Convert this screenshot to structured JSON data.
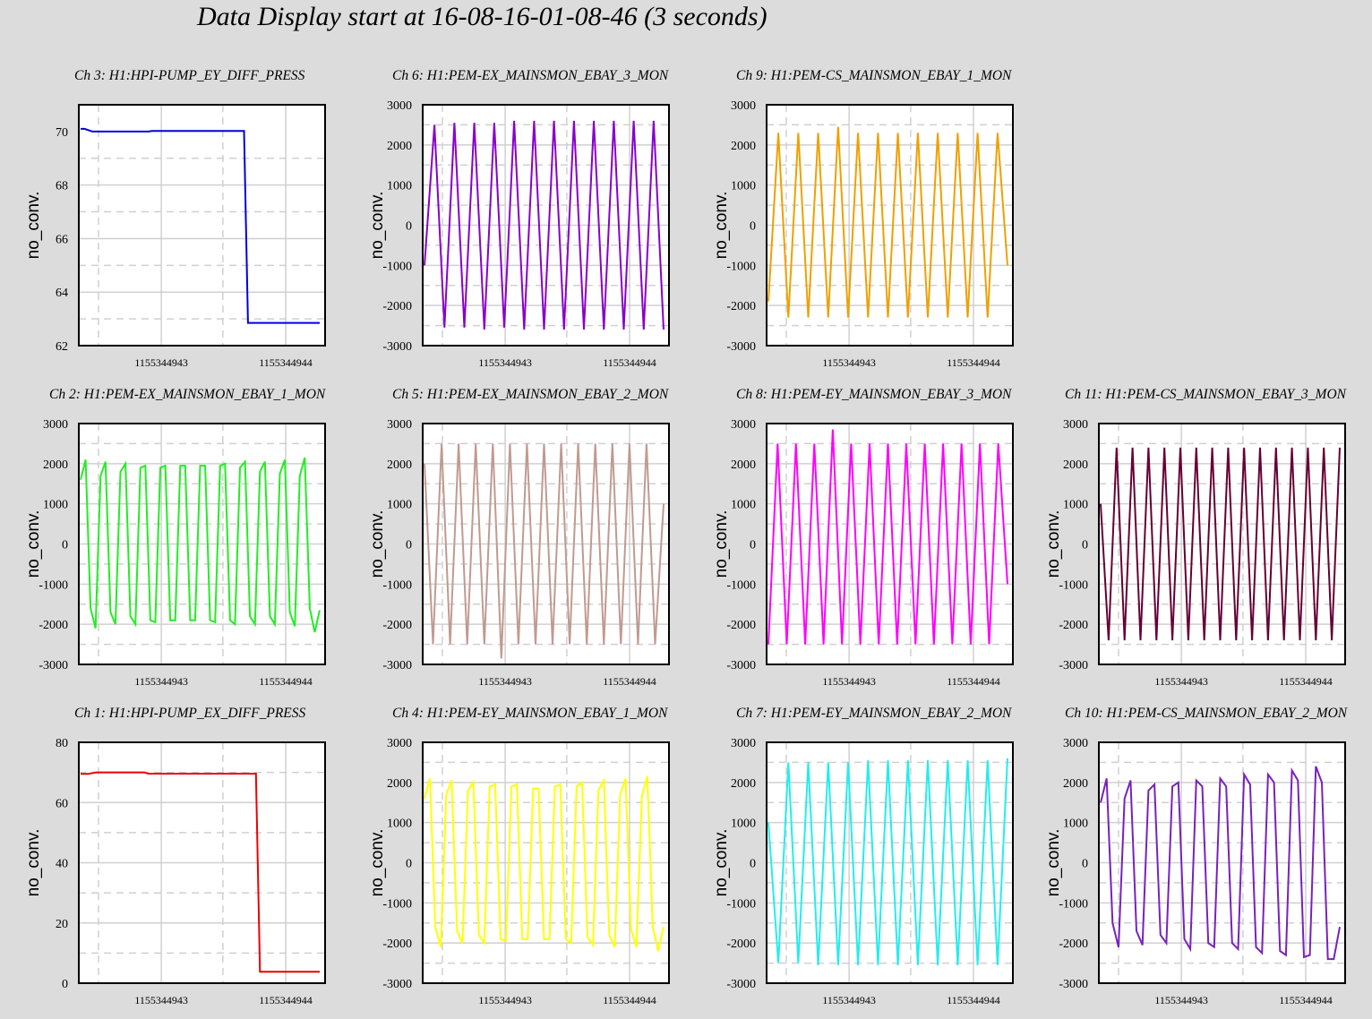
{
  "title": "Data Display start at 16-08-16-01-08-46 (3 seconds)",
  "chart_data": [
    {
      "type": "line",
      "channel": "Ch 3: H1:HPI-PUMP_EY_DIFF_PRESS",
      "color": "#0000dd",
      "ylabel": "no_conv.",
      "ylim": [
        62,
        71
      ],
      "yticks": [
        "70",
        "68",
        "66",
        "64",
        "62"
      ],
      "xticks": [
        "1155344943",
        "1155344944"
      ],
      "grid": true,
      "series": [
        {
          "values": [
            70.1,
            70.1,
            70.05,
            70.0,
            70.0,
            70.0,
            70.0,
            70.0,
            70.0,
            70.0,
            70.0,
            70.0,
            70.0,
            70.0,
            70.0,
            70.0,
            70.0,
            70.0,
            70.02,
            70.02,
            70.02,
            70.02,
            70.02,
            70.02,
            70.02,
            70.02,
            70.02,
            70.02,
            70.02,
            70.02,
            70.02,
            70.02,
            70.02,
            70.02,
            70.02,
            70.02,
            70.02,
            70.02,
            70.02,
            70.02,
            70.02,
            70.02,
            62.85,
            62.85,
            62.85,
            62.85,
            62.85,
            62.85,
            62.85,
            62.85,
            62.85,
            62.85,
            62.85,
            62.85,
            62.85,
            62.85,
            62.85,
            62.85,
            62.85,
            62.85,
            62.85
          ]
        }
      ]
    },
    {
      "type": "line",
      "channel": "Ch 6: H1:PEM-EX_MAINSMON_EBAY_3_MON",
      "color": "#8800cc",
      "ylabel": "no_conv.",
      "ylim": [
        -3000,
        3000
      ],
      "yticks": [
        "3000",
        "2000",
        "1000",
        "0",
        "-1000",
        "-2000",
        "-3000"
      ],
      "xticks": [
        "1155344943",
        "1155344944"
      ],
      "grid": true,
      "series": [
        {
          "values": [
            -1000,
            2500,
            -2550,
            2550,
            -2550,
            2550,
            -2600,
            2550,
            -2550,
            2600,
            -2600,
            2600,
            -2600,
            2600,
            -2600,
            2600,
            -2600,
            2600,
            -2600,
            2600,
            -2600,
            2600,
            -2600,
            2600,
            -2600
          ]
        }
      ]
    },
    {
      "type": "line",
      "channel": "Ch 9: H1:PEM-CS_MAINSMON_EBAY_1_MON",
      "color": "#f0a000",
      "ylabel": "no_conv.",
      "ylim": [
        -3000,
        3000
      ],
      "yticks": [
        "3000",
        "2000",
        "1000",
        "0",
        "-1000",
        "-2000",
        "-3000"
      ],
      "xticks": [
        "1155344943",
        "1155344944"
      ],
      "grid": true,
      "series": [
        {
          "values": [
            -1900,
            2300,
            -2300,
            2300,
            -2300,
            2300,
            -2300,
            2450,
            -2300,
            2300,
            -2300,
            2300,
            -2300,
            2300,
            -2300,
            2300,
            -2300,
            2300,
            -2300,
            2300,
            -2300,
            2300,
            -2300,
            2300,
            -1000
          ]
        }
      ]
    },
    {
      "type": "line",
      "channel": "Ch 2: H1:PEM-EX_MAINSMON_EBAY_1_MON",
      "color": "#22ee22",
      "ylabel": "no_conv.",
      "ylim": [
        -3000,
        3000
      ],
      "yticks": [
        "3000",
        "2000",
        "1000",
        "0",
        "-1000",
        "-2000",
        "-3000"
      ],
      "xticks": [
        "1155344943",
        "1155344944"
      ],
      "grid": true,
      "series": [
        {
          "values": [
            1600,
            2100,
            -1600,
            -2100,
            1700,
            2050,
            -1700,
            -2000,
            1800,
            2000,
            -1800,
            -2000,
            1900,
            1950,
            -1900,
            -1950,
            1900,
            1950,
            -1900,
            -1900,
            1950,
            1950,
            -1900,
            -1900,
            1950,
            1950,
            -1900,
            -1950,
            1950,
            2000,
            -1900,
            -2000,
            1900,
            2050,
            -1800,
            -2000,
            1800,
            2050,
            -1800,
            -2000,
            1750,
            2100,
            -1700,
            -2050,
            1700,
            2150,
            -1600,
            -2200,
            -1650
          ]
        }
      ]
    },
    {
      "type": "line",
      "channel": "Ch 5: H1:PEM-EX_MAINSMON_EBAY_2_MON",
      "color": "#c09a90",
      "ylabel": "no_conv.",
      "ylim": [
        -3000,
        3000
      ],
      "yticks": [
        "3000",
        "2000",
        "1000",
        "0",
        "-1000",
        "-2000",
        "-3000"
      ],
      "xticks": [
        "1155344943",
        "1155344944"
      ],
      "grid": true,
      "series": [
        {
          "values": [
            2000,
            -2500,
            2500,
            -2500,
            2500,
            -2500,
            2500,
            -2500,
            2500,
            -2850,
            2500,
            -2500,
            2500,
            -2500,
            2500,
            -2500,
            2500,
            -2500,
            2500,
            -2500,
            2500,
            -2500,
            2500,
            -2500,
            2500,
            -2500,
            2500,
            -2500,
            1000
          ]
        }
      ]
    },
    {
      "type": "line",
      "channel": "Ch 8: H1:PEM-EY_MAINSMON_EBAY_3_MON",
      "color": "#ff00ff",
      "ylabel": "no_conv.",
      "ylim": [
        -3000,
        3000
      ],
      "yticks": [
        "3000",
        "2000",
        "1000",
        "0",
        "-1000",
        "-2000",
        "-3000"
      ],
      "xticks": [
        "1155344943",
        "1155344944"
      ],
      "grid": true,
      "series": [
        {
          "values": [
            -2500,
            2500,
            -2500,
            2500,
            -2500,
            2500,
            -2500,
            2850,
            -2500,
            2500,
            -2500,
            2500,
            -2500,
            2500,
            -2500,
            2500,
            -2500,
            2500,
            -2500,
            2500,
            -2500,
            2500,
            -2500,
            2500,
            -2500,
            2500,
            -1000
          ]
        }
      ]
    },
    {
      "type": "line",
      "channel": "Ch 11: H1:PEM-CS_MAINSMON_EBAY_3_MON",
      "color": "#660033",
      "ylabel": "no_conv.",
      "ylim": [
        -3000,
        3000
      ],
      "yticks": [
        "3000",
        "2000",
        "1000",
        "0",
        "-1000",
        "-2000",
        "-3000"
      ],
      "xticks": [
        "1155344943",
        "1155344944"
      ],
      "grid": true,
      "series": [
        {
          "values": [
            1000,
            -2400,
            2400,
            -2400,
            2400,
            -2400,
            2400,
            -2400,
            2400,
            -2400,
            2400,
            -2400,
            2400,
            -2400,
            2400,
            -2400,
            2400,
            -2400,
            2400,
            -2400,
            2400,
            -2400,
            2400,
            -2400,
            2400,
            -2400,
            2400,
            -2400,
            2400,
            -2400,
            2400
          ]
        }
      ]
    },
    {
      "type": "line",
      "channel": "Ch 1: H1:HPI-PUMP_EX_DIFF_PRESS",
      "color": "#ee0000",
      "ylabel": "no_conv.",
      "ylim": [
        0,
        80
      ],
      "yticks": [
        "80",
        "60",
        "40",
        "20",
        "0"
      ],
      "xticks": [
        "1155344943",
        "1155344944"
      ],
      "grid": true,
      "series": [
        {
          "values": [
            69.5,
            69.5,
            69.5,
            69.8,
            70.0,
            70.0,
            70.0,
            70.0,
            70.0,
            70.0,
            70.0,
            70.0,
            70.0,
            70.0,
            70.0,
            70.0,
            70.0,
            69.6,
            69.6,
            69.6,
            69.6,
            69.6,
            69.6,
            69.6,
            69.6,
            69.6,
            69.6,
            69.6,
            69.6,
            69.6,
            69.6,
            69.6,
            69.6,
            69.6,
            69.6,
            69.6,
            69.6,
            69.6,
            69.6,
            69.6,
            69.6,
            69.6,
            69.6,
            69.6,
            69.6,
            3.8,
            3.8,
            3.8,
            3.8,
            3.8,
            3.8,
            3.8,
            3.8,
            3.8,
            3.8,
            3.8,
            3.8,
            3.8,
            3.8,
            3.8,
            3.8
          ]
        }
      ]
    },
    {
      "type": "line",
      "channel": "Ch 4: H1:PEM-EY_MAINSMON_EBAY_1_MON",
      "color": "#ffff00",
      "ylabel": "no_conv.",
      "ylim": [
        -3000,
        3000
      ],
      "yticks": [
        "3000",
        "2000",
        "1000",
        "0",
        "-1000",
        "-2000",
        "-3000"
      ],
      "xticks": [
        "1155344943",
        "1155344944"
      ],
      "grid": true,
      "series": [
        {
          "values": [
            1600,
            2100,
            -1600,
            -2100,
            1700,
            2050,
            -1700,
            -2000,
            1800,
            2000,
            -1800,
            -2000,
            1900,
            1950,
            -1900,
            -1950,
            1900,
            1950,
            -1900,
            -1900,
            1850,
            1850,
            -1900,
            -1900,
            1900,
            1950,
            -1900,
            -2000,
            1900,
            2000,
            -1850,
            -2050,
            1800,
            2050,
            -1800,
            -2100,
            1700,
            2100,
            -1650,
            -2100,
            1650,
            2150,
            -1600,
            -2200,
            -1600
          ]
        }
      ]
    },
    {
      "type": "line",
      "channel": "Ch 7: H1:PEM-EY_MAINSMON_EBAY_2_MON",
      "color": "#22eeee",
      "ylabel": "no_conv.",
      "ylim": [
        -3000,
        3000
      ],
      "yticks": [
        "3000",
        "2000",
        "1000",
        "0",
        "-1000",
        "-2000",
        "-3000"
      ],
      "xticks": [
        "1155344943",
        "1155344944"
      ],
      "grid": true,
      "series": [
        {
          "values": [
            1000,
            -2500,
            2500,
            -2500,
            2500,
            -2550,
            2500,
            -2550,
            2500,
            -2550,
            2550,
            -2550,
            2550,
            -2550,
            2550,
            -2550,
            2550,
            -2550,
            2550,
            -2550,
            2550,
            -2550,
            2550,
            -2550,
            2600
          ]
        }
      ]
    },
    {
      "type": "line",
      "channel": "Ch 10: H1:PEM-CS_MAINSMON_EBAY_2_MON",
      "color": "#7722bb",
      "ylabel": "no_conv.",
      "ylim": [
        -3000,
        3000
      ],
      "yticks": [
        "3000",
        "2000",
        "1000",
        "0",
        "-1000",
        "-2000",
        "-3000"
      ],
      "xticks": [
        "1155344943",
        "1155344944"
      ],
      "grid": true,
      "series": [
        {
          "values": [
            1500,
            2100,
            -1500,
            -2100,
            1600,
            2050,
            -1700,
            -2050,
            1800,
            1950,
            -1800,
            -2000,
            1900,
            2000,
            -1900,
            -2150,
            2050,
            1900,
            -2000,
            -2100,
            2100,
            1900,
            -2000,
            -2150,
            2200,
            1950,
            -2100,
            -2250,
            2200,
            2000,
            -2200,
            -2300,
            2300,
            2050,
            -2350,
            -2300,
            2400,
            2000,
            -2400,
            -2400,
            -1600
          ]
        }
      ]
    }
  ]
}
